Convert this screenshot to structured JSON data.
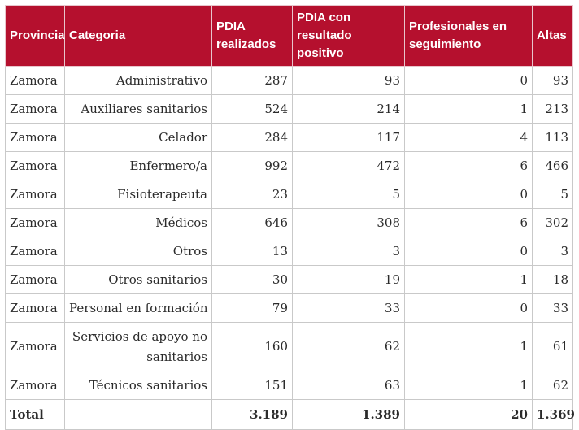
{
  "table": {
    "headers": {
      "provincia": "Provincia",
      "categoria": "Categoria",
      "pdia_realizados": "PDIA realizados",
      "pdia_positivo": "PDIA con resultado positivo",
      "profesionales_seguimiento": "Profesionales en seguimiento",
      "altas": "Altas"
    },
    "rows": [
      {
        "provincia": "Zamora",
        "categoria": "Administrativo",
        "pdia_realizados": "287",
        "pdia_positivo": "93",
        "profesionales_seguimiento": "0",
        "altas": "93"
      },
      {
        "provincia": "Zamora",
        "categoria": "Auxiliares sanitarios",
        "pdia_realizados": "524",
        "pdia_positivo": "214",
        "profesionales_seguimiento": "1",
        "altas": "213"
      },
      {
        "provincia": "Zamora",
        "categoria": "Celador",
        "pdia_realizados": "284",
        "pdia_positivo": "117",
        "profesionales_seguimiento": "4",
        "altas": "113"
      },
      {
        "provincia": "Zamora",
        "categoria": "Enfermero/a",
        "pdia_realizados": "992",
        "pdia_positivo": "472",
        "profesionales_seguimiento": "6",
        "altas": "466"
      },
      {
        "provincia": "Zamora",
        "categoria": "Fisioterapeuta",
        "pdia_realizados": "23",
        "pdia_positivo": "5",
        "profesionales_seguimiento": "0",
        "altas": "5"
      },
      {
        "provincia": "Zamora",
        "categoria": "Médicos",
        "pdia_realizados": "646",
        "pdia_positivo": "308",
        "profesionales_seguimiento": "6",
        "altas": "302"
      },
      {
        "provincia": "Zamora",
        "categoria": "Otros",
        "pdia_realizados": "13",
        "pdia_positivo": "3",
        "profesionales_seguimiento": "0",
        "altas": "3"
      },
      {
        "provincia": "Zamora",
        "categoria": "Otros sanitarios",
        "pdia_realizados": "30",
        "pdia_positivo": "19",
        "profesionales_seguimiento": "1",
        "altas": "18"
      },
      {
        "provincia": "Zamora",
        "categoria": "Personal en formación",
        "pdia_realizados": "79",
        "pdia_positivo": "33",
        "profesionales_seguimiento": "0",
        "altas": "33"
      },
      {
        "provincia": "Zamora",
        "categoria": "Servicios de apoyo no sanitarios",
        "pdia_realizados": "160",
        "pdia_positivo": "62",
        "profesionales_seguimiento": "1",
        "altas": "61"
      },
      {
        "provincia": "Zamora",
        "categoria": "Técnicos sanitarios",
        "pdia_realizados": "151",
        "pdia_positivo": "63",
        "profesionales_seguimiento": "1",
        "altas": "62"
      }
    ],
    "total": {
      "label": "Total",
      "pdia_realizados": "3.189",
      "pdia_positivo": "1.389",
      "profesionales_seguimiento": "20",
      "altas": "1.369"
    }
  },
  "colors": {
    "header_background": "#b5102e",
    "header_text": "#ffffff",
    "border": "#c9c9c9"
  }
}
